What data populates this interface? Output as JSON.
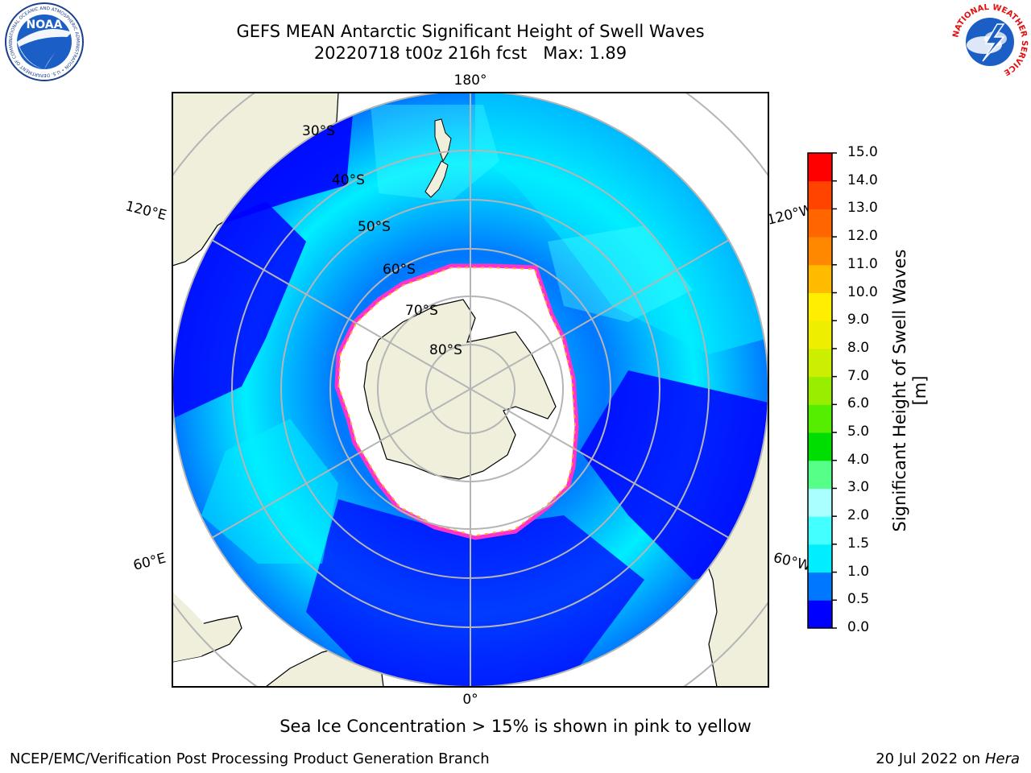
{
  "title_line1": "GEFS MEAN Antarctic Significant Height of Swell Waves",
  "title_line2": "20220718 t00z 216h fcst   Max: 1.89",
  "logos": {
    "left": {
      "icon": "noaa-logo",
      "text": "NOAA",
      "ring_text": "NATIONAL OCEANIC AND ATMOSPHERIC ADMINISTRATION • U.S. DEPARTMENT OF COMMERCE"
    },
    "right": {
      "icon": "nws-logo",
      "ring_text": "NATIONAL WEATHER SERVICE"
    }
  },
  "map": {
    "projection": "south-polar-stereographic",
    "latitude_labels": [
      "30°S",
      "40°S",
      "50°S",
      "60°S",
      "70°S",
      "80°S"
    ],
    "longitude_labels": {
      "top": "180°",
      "bottom": "0°",
      "upper_left": "120°E",
      "upper_right": "120°W",
      "lower_left": "60°E",
      "lower_right": "60°W"
    },
    "colors": {
      "land": "#efefdc",
      "ice_interior": "#ffffff",
      "ice_edge": [
        "#ff33cc",
        "#ffaa33"
      ]
    }
  },
  "colorbar": {
    "label": "Significant Height of Swell Waves [m]",
    "ticks": [
      "0.0",
      "0.5",
      "1.0",
      "1.5",
      "2.0",
      "3.0",
      "4.0",
      "5.0",
      "6.0",
      "7.0",
      "8.0",
      "9.0",
      "10.0",
      "11.0",
      "12.0",
      "13.0",
      "14.0",
      "15.0"
    ],
    "colors": [
      "#0000ff",
      "#0077ff",
      "#00eeff",
      "#44ffff",
      "#aaffff",
      "#55ff88",
      "#00dd00",
      "#55ee00",
      "#99ee00",
      "#ccee00",
      "#eeee00",
      "#ffee00",
      "#ffbb00",
      "#ff8800",
      "#ff6600",
      "#ff4400",
      "#ff0000"
    ]
  },
  "ice_note": "Sea Ice Concentration > 15% is shown in pink to yellow",
  "credit": "NCEP/EMC/Verification Post Processing Product Generation Branch",
  "footer_date": "20 Jul 2022 on",
  "footer_host": "Hera"
}
